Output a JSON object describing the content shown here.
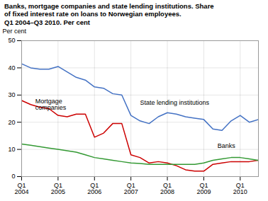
{
  "chart_data": {
    "type": "line",
    "title": "Banks, mortgage companies and state lending institutions. Share\nof fixed interest rate on loans to Norwegian employees.\nQ1 2004–Q3 2010. Per cent",
    "ylabel": "Per cent",
    "categories": [
      "Q1\n2004",
      null,
      null,
      null,
      "Q1\n2005",
      null,
      null,
      null,
      "Q1\n2006",
      null,
      null,
      null,
      "Q1\n2007",
      null,
      null,
      null,
      "Q1\n2008",
      null,
      null,
      null,
      "Q1\n2009",
      null,
      null,
      null,
      "Q1\n2010",
      null,
      null
    ],
    "series": [
      {
        "name": "State lending institutions",
        "color": "#4472c4",
        "values": [
          41.5,
          40.0,
          39.5,
          39.5,
          40.5,
          38.5,
          36.5,
          35.5,
          33.0,
          32.5,
          30.5,
          30.0,
          22.5,
          20.5,
          19.5,
          22.0,
          23.5,
          23.0,
          22.0,
          21.5,
          21.0,
          17.5,
          17.0,
          20.5,
          22.5,
          20.0,
          21.0
        ]
      },
      {
        "name": "Mortgage\ncompanies",
        "color": "#cc0000",
        "values": [
          28.0,
          26.5,
          25.5,
          25.0,
          22.5,
          22.0,
          23.0,
          23.0,
          14.5,
          16.0,
          19.5,
          19.5,
          8.0,
          7.0,
          5.0,
          5.5,
          5.0,
          4.0,
          2.5,
          2.0,
          2.0,
          4.5,
          5.0,
          5.5,
          5.5,
          5.5,
          6.0
        ]
      },
      {
        "name": "Banks",
        "color": "#339933",
        "values": [
          12.0,
          11.5,
          11.0,
          10.5,
          10.0,
          9.5,
          9.0,
          8.0,
          7.0,
          6.5,
          6.0,
          5.5,
          5.0,
          4.8,
          4.5,
          4.5,
          4.5,
          4.5,
          4.5,
          4.5,
          5.0,
          6.0,
          6.5,
          7.0,
          7.0,
          6.5,
          6.0
        ]
      }
    ],
    "annotations": [
      {
        "text": "Mortgage\ncompanies",
        "x": 1.5,
        "y": 28.5
      },
      {
        "text": "State lending institutions",
        "x": 13.0,
        "y": 26.5
      },
      {
        "text": "Banks",
        "x": 21.5,
        "y": 10.5
      }
    ],
    "ylim": [
      0,
      50
    ],
    "yticks": [
      0,
      10,
      20,
      30,
      40,
      50
    ],
    "grid": true
  }
}
